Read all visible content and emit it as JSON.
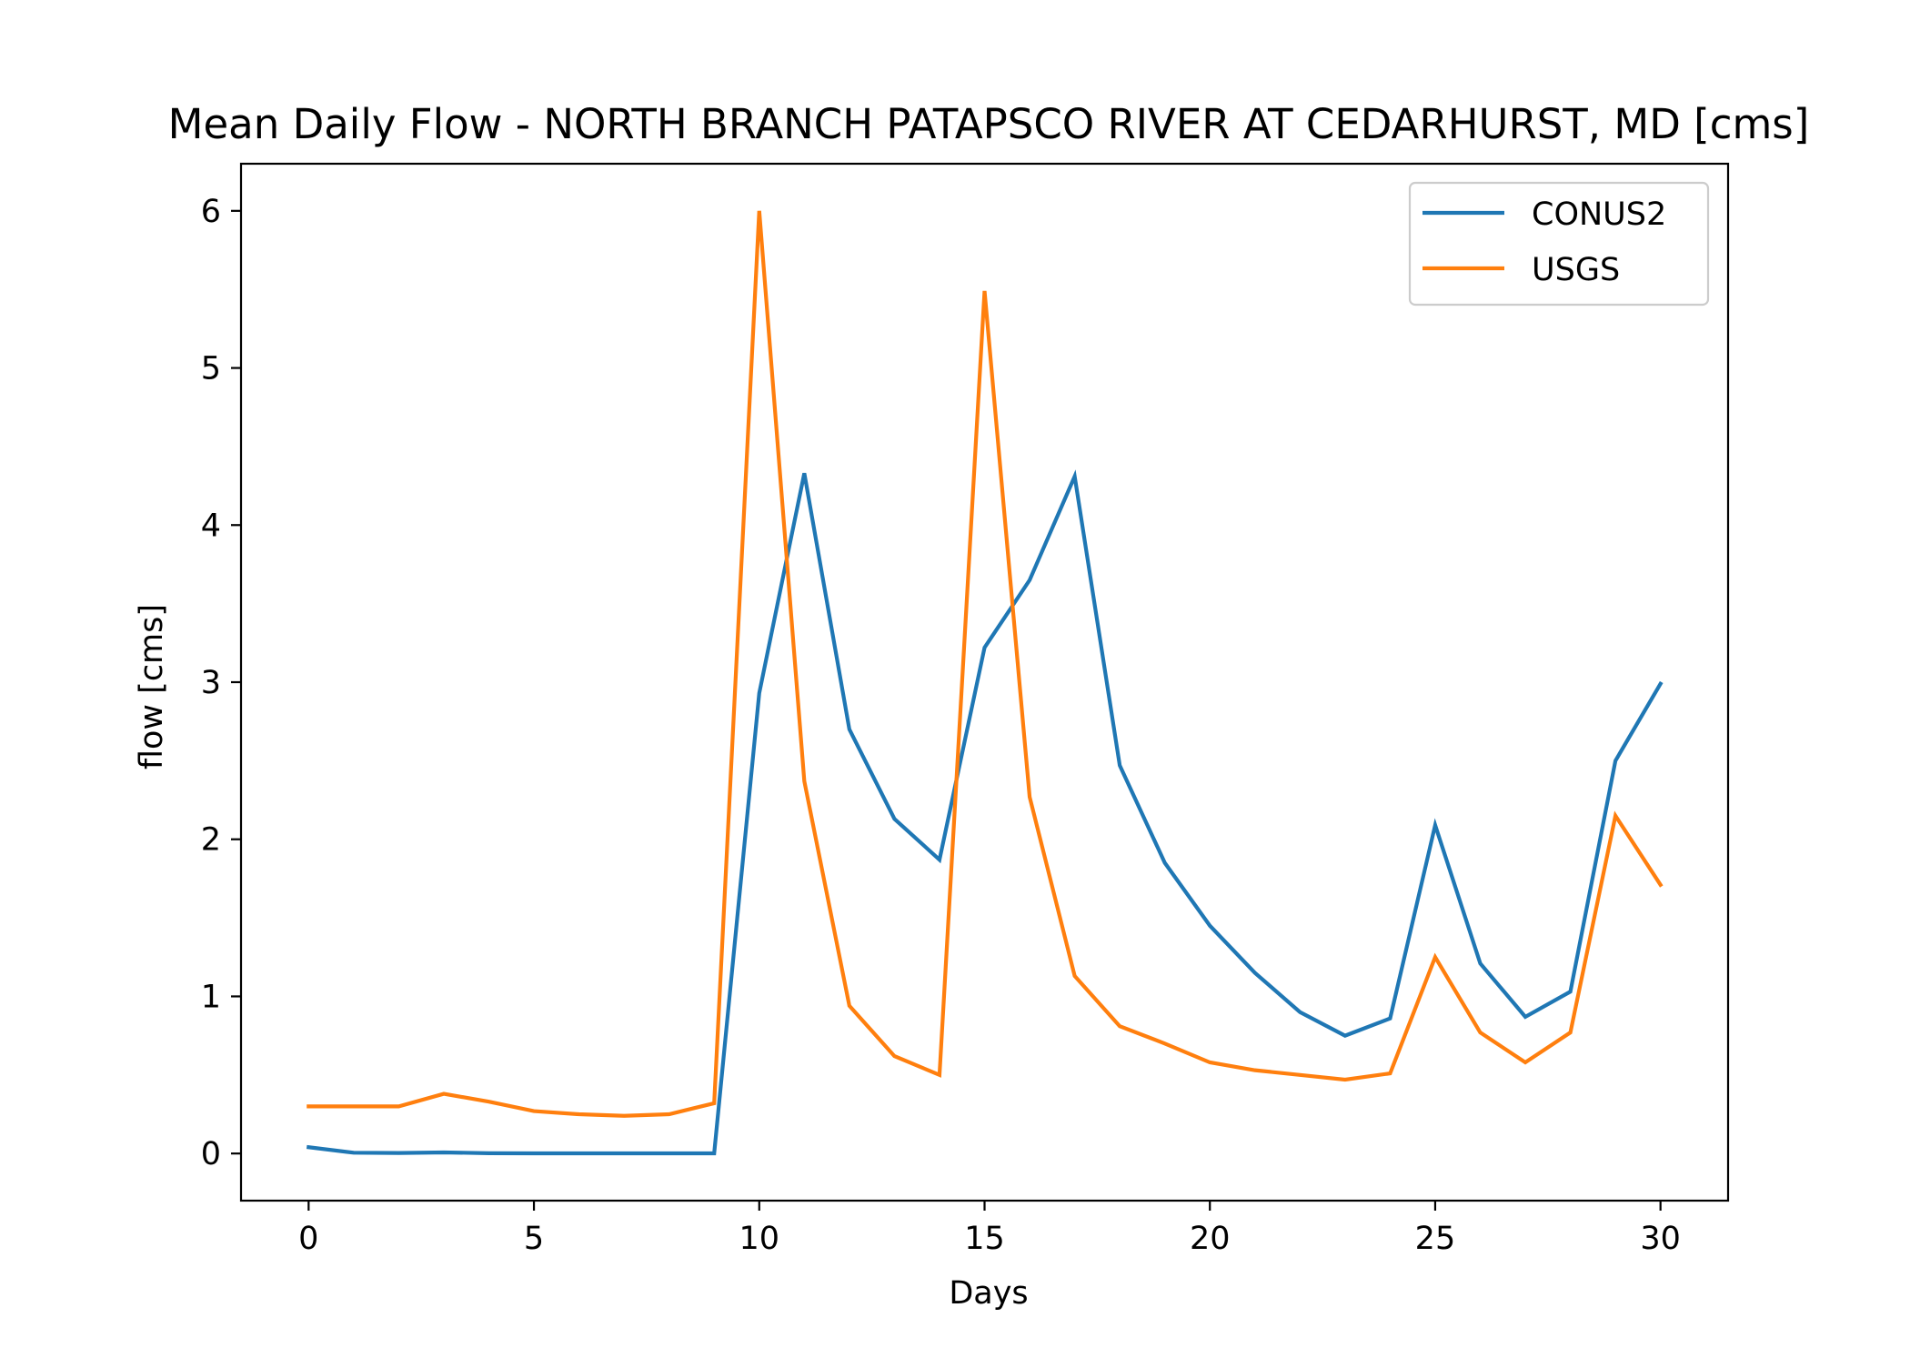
{
  "chart_data": {
    "type": "line",
    "title": "Mean Daily Flow - NORTH BRANCH PATAPSCO RIVER AT CEDARHURST, MD [cms]",
    "xlabel": "Days",
    "ylabel": "flow [cms]",
    "xlim": [
      -1.5,
      31.5
    ],
    "ylim": [
      -0.3,
      6.3
    ],
    "xticks": [
      0,
      5,
      10,
      15,
      20,
      25,
      30
    ],
    "yticks": [
      0,
      1,
      2,
      3,
      4,
      5,
      6
    ],
    "grid": false,
    "legend_position": "top-right",
    "x": [
      0,
      1,
      2,
      3,
      4,
      5,
      6,
      7,
      8,
      9,
      10,
      11,
      12,
      13,
      14,
      15,
      16,
      17,
      18,
      19,
      20,
      21,
      22,
      23,
      24,
      25,
      26,
      27,
      28,
      29,
      30
    ],
    "series": [
      {
        "name": "CONUS2",
        "color": "#1f77b4",
        "values": [
          0.04,
          0.005,
          0.003,
          0.007,
          0.002,
          0.001,
          0.001,
          0.001,
          0.001,
          0.001,
          2.93,
          4.33,
          2.7,
          2.13,
          1.87,
          3.22,
          3.65,
          4.31,
          2.47,
          1.85,
          1.45,
          1.15,
          0.9,
          0.75,
          0.86,
          2.09,
          1.21,
          0.87,
          1.03,
          2.5,
          2.99
        ]
      },
      {
        "name": "USGS",
        "color": "#ff7f0e",
        "values": [
          0.3,
          0.3,
          0.3,
          0.38,
          0.33,
          0.27,
          0.25,
          0.24,
          0.25,
          0.32,
          6.0,
          2.37,
          0.94,
          0.62,
          0.5,
          5.49,
          2.27,
          1.13,
          0.81,
          0.7,
          0.58,
          0.53,
          0.5,
          0.47,
          0.51,
          1.25,
          0.77,
          0.58,
          0.77,
          2.15,
          1.71
        ]
      }
    ]
  }
}
